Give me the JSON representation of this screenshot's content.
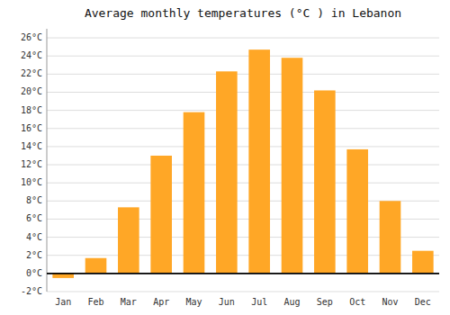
{
  "chart_data": {
    "type": "bar",
    "title": "Average monthly temperatures (°C ) in Lebanon",
    "categories": [
      "Jan",
      "Feb",
      "Mar",
      "Apr",
      "May",
      "Jun",
      "Jul",
      "Aug",
      "Sep",
      "Oct",
      "Nov",
      "Dec"
    ],
    "values": [
      -0.5,
      1.7,
      7.3,
      13.0,
      17.8,
      22.3,
      24.7,
      23.8,
      20.2,
      13.7,
      8.0,
      2.5
    ],
    "color": "#FFA726",
    "ylim": [
      -2,
      27
    ],
    "yticks": [
      {
        "value": -2,
        "label": "-2°C"
      },
      {
        "value": 0,
        "label": "0°C"
      },
      {
        "value": 2,
        "label": "2°C"
      },
      {
        "value": 4,
        "label": "4°C"
      },
      {
        "value": 6,
        "label": "6°C"
      },
      {
        "value": 8,
        "label": "8°C"
      },
      {
        "value": 10,
        "label": "10°C"
      },
      {
        "value": 12,
        "label": "12°C"
      },
      {
        "value": 14,
        "label": "14°C"
      },
      {
        "value": 16,
        "label": "16°C"
      },
      {
        "value": 18,
        "label": "18°C"
      },
      {
        "value": 20,
        "label": "20°C"
      },
      {
        "value": 22,
        "label": "22°C"
      },
      {
        "value": 24,
        "label": "24°C"
      },
      {
        "value": 26,
        "label": "26°C"
      }
    ],
    "grid": true
  }
}
